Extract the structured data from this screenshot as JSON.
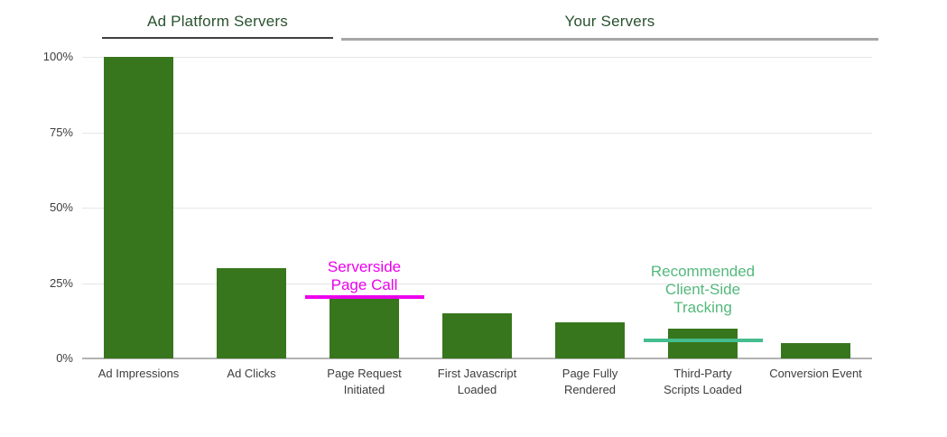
{
  "chart_data": {
    "type": "bar",
    "title": "",
    "xlabel": "",
    "ylabel": "",
    "categories": [
      "Ad Impressions",
      "Ad Clicks",
      "Page Request\nInitiated",
      "First Javascript\nLoaded",
      "Page Fully\nRendered",
      "Third-Party\nScripts Loaded",
      "Conversion Event"
    ],
    "values": [
      100,
      30,
      20,
      15,
      12,
      10,
      5
    ],
    "unit": "%",
    "ylim": [
      0,
      100
    ],
    "yticks": [
      0,
      25,
      50,
      75,
      100
    ],
    "ytick_labels": [
      "0%",
      "25%",
      "50%",
      "75%",
      "100%"
    ],
    "grid": true,
    "legend": false,
    "bar_color": "#38761d",
    "groups": [
      {
        "label": "Ad Platform Servers",
        "from_bar": 0,
        "to_bar": 1
      },
      {
        "label": "Your Servers",
        "from_bar": 2,
        "to_bar": 6
      }
    ],
    "annotations": [
      {
        "text": "Serverside\nPage Call",
        "text_color": "#ec00ec",
        "line_color": "#ec00ec",
        "line_value": 20.5,
        "bar_index": 2
      },
      {
        "text": "Recommended\nClient-Side\nTracking",
        "text_color": "#54b87c",
        "line_color": "#45bd8e",
        "line_value": 6,
        "bar_index": 5
      }
    ],
    "colors": {
      "bar": "#38761d",
      "group_header_text": "#29522e",
      "group_underline_dark": "#3f3f3f",
      "group_underline_gray": "#a6a6a6",
      "gridline": "#e6e6e6",
      "axis_baseline": "#b3b3b3",
      "axis_text": "#3d3d3d",
      "serverside_annotation": "#ec00ec",
      "clientside_annotation_text": "#54b87c",
      "clientside_annotation_line": "#45bd8e"
    }
  }
}
